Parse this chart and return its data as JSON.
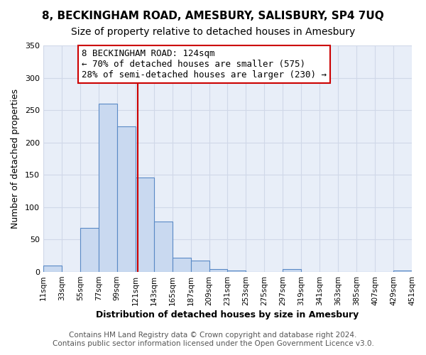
{
  "title": "8, BECKINGHAM ROAD, AMESBURY, SALISBURY, SP4 7UQ",
  "subtitle": "Size of property relative to detached houses in Amesbury",
  "xlabel": "Distribution of detached houses by size in Amesbury",
  "ylabel": "Number of detached properties",
  "bar_values": [
    10,
    0,
    68,
    260,
    225,
    146,
    78,
    22,
    18,
    5,
    2,
    0,
    0,
    4,
    0,
    0,
    0,
    0,
    0,
    2
  ],
  "bin_edges": [
    11,
    33,
    55,
    77,
    99,
    121,
    143,
    165,
    187,
    209,
    231,
    253,
    275,
    297,
    319,
    341,
    363,
    385,
    407,
    429,
    451
  ],
  "tick_labels": [
    "11sqm",
    "33sqm",
    "55sqm",
    "77sqm",
    "99sqm",
    "121sqm",
    "143sqm",
    "165sqm",
    "187sqm",
    "209sqm",
    "231sqm",
    "253sqm",
    "275sqm",
    "297sqm",
    "319sqm",
    "341sqm",
    "363sqm",
    "385sqm",
    "407sqm",
    "429sqm",
    "451sqm"
  ],
  "bar_color": "#c9d9f0",
  "bar_edge_color": "#5a8ac6",
  "property_line_x": 124,
  "ylim": [
    0,
    350
  ],
  "yticks": [
    0,
    50,
    100,
    150,
    200,
    250,
    300,
    350
  ],
  "annotation_title": "8 BECKINGHAM ROAD: 124sqm",
  "annotation_line1": "← 70% of detached houses are smaller (575)",
  "annotation_line2": "28% of semi-detached houses are larger (230) →",
  "annotation_box_color": "#ffffff",
  "annotation_box_edge": "#cc0000",
  "footer1": "Contains HM Land Registry data © Crown copyright and database right 2024.",
  "footer2": "Contains public sector information licensed under the Open Government Licence v3.0.",
  "grid_color": "#d0d8e8",
  "plot_bg_color": "#e8eef8",
  "fig_bg_color": "#ffffff",
  "vline_color": "#cc0000",
  "title_fontsize": 11,
  "subtitle_fontsize": 10,
  "axis_label_fontsize": 9,
  "tick_fontsize": 7.5,
  "annotation_fontsize": 9,
  "footer_fontsize": 7.5
}
